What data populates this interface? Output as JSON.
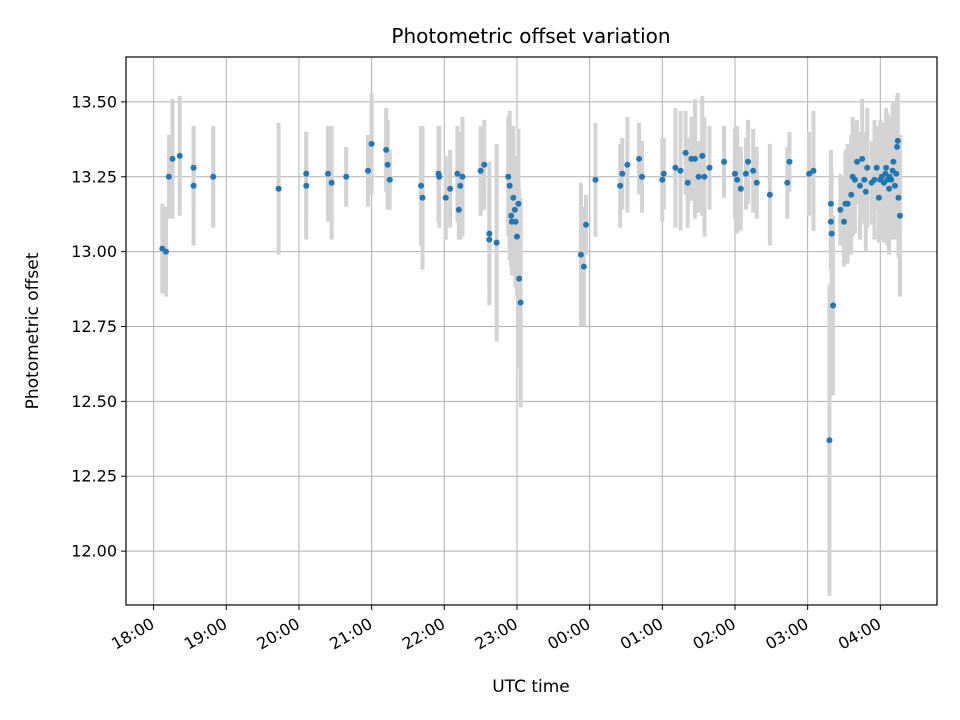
{
  "chart_data": {
    "type": "scatter",
    "title": "Photometric offset variation",
    "xlabel": "UTC time",
    "ylabel": "Photometric offset",
    "x_ticks": [
      "18:00",
      "19:00",
      "20:00",
      "21:00",
      "22:00",
      "23:00",
      "00:00",
      "01:00",
      "02:00",
      "03:00",
      "04:00"
    ],
    "y_ticks": [
      "12.00",
      "12.25",
      "12.50",
      "12.75",
      "13.00",
      "13.25",
      "13.50"
    ],
    "xlim": [
      -0.38,
      10.78
    ],
    "ylim": [
      11.82,
      13.65
    ],
    "x_unit": "hours since 18:00 UTC",
    "grid": true,
    "colors": {
      "point": "#1f77b4",
      "error_bar": "#d3d3d3",
      "grid": "#b0b0b0"
    },
    "series": [
      {
        "points": [
          [
            0.12,
            13.01,
            0.15
          ],
          [
            0.17,
            13.0,
            0.15
          ],
          [
            0.21,
            13.25,
            0.14
          ],
          [
            0.26,
            13.31,
            0.2
          ],
          [
            0.36,
            13.32,
            0.2
          ],
          [
            0.55,
            13.28,
            0.14
          ],
          [
            0.55,
            13.22,
            0.2
          ],
          [
            0.82,
            13.25,
            0.17
          ],
          [
            1.72,
            13.21,
            0.22
          ],
          [
            2.1,
            13.26,
            0.14
          ],
          [
            2.1,
            13.22,
            0.18
          ],
          [
            2.4,
            13.26,
            0.16
          ],
          [
            2.45,
            13.23,
            0.19
          ],
          [
            2.65,
            13.25,
            0.1
          ],
          [
            2.95,
            13.27,
            0.12
          ],
          [
            3.0,
            13.36,
            0.17
          ],
          [
            3.2,
            13.34,
            0.14
          ],
          [
            3.22,
            13.29,
            0.15
          ],
          [
            3.25,
            13.24,
            0.1
          ],
          [
            3.68,
            13.22,
            0.2
          ],
          [
            3.7,
            13.18,
            0.24
          ],
          [
            3.92,
            13.26,
            0.16
          ],
          [
            3.93,
            13.25,
            0.17
          ],
          [
            4.02,
            13.18,
            0.14
          ],
          [
            4.08,
            13.21,
            0.13
          ],
          [
            4.18,
            13.26,
            0.16
          ],
          [
            4.2,
            13.14,
            0.1
          ],
          [
            4.22,
            13.22,
            0.18
          ],
          [
            4.25,
            13.25,
            0.2
          ],
          [
            4.5,
            13.27,
            0.15
          ],
          [
            4.55,
            13.29,
            0.15
          ],
          [
            4.62,
            13.06,
            0.24
          ],
          [
            4.62,
            13.04,
            0.17
          ],
          [
            4.72,
            13.03,
            0.33
          ],
          [
            4.88,
            13.25,
            0.2
          ],
          [
            4.9,
            13.22,
            0.25
          ],
          [
            4.92,
            13.12,
            0.17
          ],
          [
            4.93,
            13.1,
            0.18
          ],
          [
            4.95,
            13.18,
            0.24
          ],
          [
            4.97,
            13.14,
            0.17
          ],
          [
            4.98,
            13.1,
            0.22
          ],
          [
            5.0,
            13.05,
            0.2
          ],
          [
            5.02,
            13.16,
            0.25
          ],
          [
            5.03,
            12.91,
            0.3
          ],
          [
            5.05,
            12.83,
            0.35
          ],
          [
            5.88,
            12.99,
            0.24
          ],
          [
            5.92,
            12.95,
            0.2
          ],
          [
            5.95,
            13.09,
            0.1
          ],
          [
            6.08,
            13.24,
            0.19
          ],
          [
            6.42,
            13.22,
            0.14
          ],
          [
            6.45,
            13.26,
            0.12
          ],
          [
            6.52,
            13.29,
            0.16
          ],
          [
            6.68,
            13.31,
            0.12
          ],
          [
            6.72,
            13.25,
            0.12
          ],
          [
            7.0,
            13.24,
            0.14
          ],
          [
            7.02,
            13.26,
            0.12
          ],
          [
            7.18,
            13.28,
            0.2
          ],
          [
            7.25,
            13.27,
            0.2
          ],
          [
            7.32,
            13.33,
            0.14
          ],
          [
            7.35,
            13.23,
            0.15
          ],
          [
            7.4,
            13.31,
            0.14
          ],
          [
            7.45,
            13.31,
            0.2
          ],
          [
            7.5,
            13.25,
            0.12
          ],
          [
            7.55,
            13.32,
            0.2
          ],
          [
            7.58,
            13.25,
            0.2
          ],
          [
            7.65,
            13.28,
            0.14
          ],
          [
            7.85,
            13.3,
            0.12
          ],
          [
            8.0,
            13.26,
            0.15
          ],
          [
            8.03,
            13.24,
            0.18
          ],
          [
            8.08,
            13.21,
            0.14
          ],
          [
            8.15,
            13.26,
            0.12
          ],
          [
            8.18,
            13.3,
            0.14
          ],
          [
            8.25,
            13.27,
            0.14
          ],
          [
            8.3,
            13.23,
            0.12
          ],
          [
            8.48,
            13.19,
            0.17
          ],
          [
            8.72,
            13.23,
            0.12
          ],
          [
            8.75,
            13.3,
            0.1
          ],
          [
            9.02,
            13.26,
            0.14
          ],
          [
            9.08,
            13.27,
            0.2
          ],
          [
            9.3,
            12.37,
            0.52
          ],
          [
            9.32,
            13.16,
            0.18
          ],
          [
            9.32,
            13.1,
            0.16
          ],
          [
            9.33,
            13.06,
            0.22
          ],
          [
            9.35,
            12.82,
            0.3
          ],
          [
            9.45,
            13.14,
            0.12
          ],
          [
            9.5,
            13.1,
            0.15
          ],
          [
            9.52,
            13.16,
            0.18
          ],
          [
            9.55,
            13.16,
            0.2
          ],
          [
            9.6,
            13.19,
            0.2
          ],
          [
            9.62,
            13.25,
            0.2
          ],
          [
            9.65,
            13.24,
            0.18
          ],
          [
            9.68,
            13.3,
            0.14
          ],
          [
            9.72,
            13.22,
            0.18
          ],
          [
            9.75,
            13.31,
            0.2
          ],
          [
            9.78,
            13.24,
            0.15
          ],
          [
            9.8,
            13.2,
            0.2
          ],
          [
            9.82,
            13.28,
            0.2
          ],
          [
            9.88,
            13.23,
            0.14
          ],
          [
            9.92,
            13.24,
            0.2
          ],
          [
            9.95,
            13.28,
            0.14
          ],
          [
            9.98,
            13.18,
            0.15
          ],
          [
            10.0,
            13.24,
            0.2
          ],
          [
            10.02,
            13.25,
            0.18
          ],
          [
            10.05,
            13.23,
            0.2
          ],
          [
            10.07,
            13.26,
            0.16
          ],
          [
            10.08,
            13.28,
            0.2
          ],
          [
            10.1,
            13.24,
            0.22
          ],
          [
            10.12,
            13.21,
            0.22
          ],
          [
            10.13,
            13.25,
            0.2
          ],
          [
            10.15,
            13.24,
            0.2
          ],
          [
            10.17,
            13.27,
            0.22
          ],
          [
            10.18,
            13.3,
            0.2
          ],
          [
            10.2,
            13.22,
            0.18
          ],
          [
            10.22,
            13.26,
            0.2
          ],
          [
            10.23,
            13.35,
            0.17
          ],
          [
            10.24,
            13.37,
            0.16
          ],
          [
            10.25,
            13.18,
            0.2
          ],
          [
            10.27,
            13.12,
            0.27
          ]
        ],
        "point_format": [
          "x_hours",
          "y",
          "yerr"
        ]
      }
    ]
  }
}
